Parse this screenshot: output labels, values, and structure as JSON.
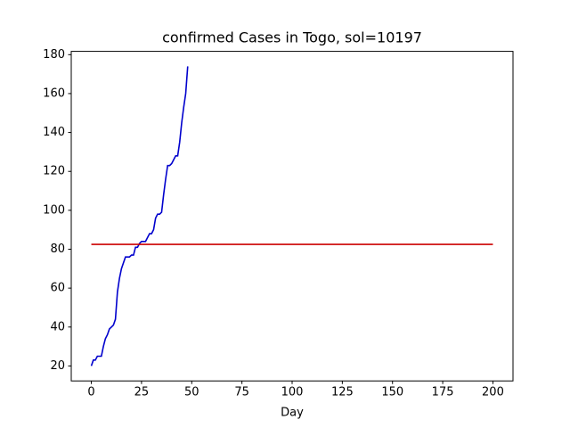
{
  "chart_data": {
    "type": "line",
    "title": "confirmed Cases in Togo, sol=10197",
    "xlabel": "Day",
    "xlim": [
      -10,
      210
    ],
    "xticks": [
      0,
      25,
      50,
      75,
      100,
      125,
      150,
      175,
      200
    ],
    "ylim": [
      12.3,
      181.7
    ],
    "yticks": [
      20,
      40,
      60,
      80,
      100,
      120,
      140,
      160,
      180
    ],
    "series": [
      {
        "color": "#0000cd",
        "x": [
          0,
          1,
          2,
          3,
          4,
          5,
          6,
          7,
          8,
          9,
          10,
          11,
          12,
          13,
          14,
          15,
          16,
          17,
          18,
          19,
          20,
          21,
          22,
          23,
          24,
          25,
          26,
          27,
          28,
          29,
          30,
          31,
          32,
          33,
          34,
          35,
          36,
          37,
          38,
          39,
          40,
          41,
          42,
          43,
          44,
          45,
          46,
          47,
          48
        ],
        "values": [
          20,
          23,
          23,
          25,
          25,
          25,
          30,
          34,
          36,
          39,
          40,
          41,
          44,
          58,
          65,
          70,
          73,
          76,
          76,
          76,
          77,
          77,
          81,
          81,
          83,
          84,
          84,
          84,
          86,
          88,
          88,
          90,
          96,
          98,
          98,
          99,
          108,
          116,
          123,
          123,
          124,
          126,
          128,
          128,
          135,
          145,
          153,
          160,
          174
        ]
      },
      {
        "color": "#cc0000",
        "x": [
          0,
          200
        ],
        "values": [
          82.5,
          82.5
        ]
      }
    ]
  }
}
